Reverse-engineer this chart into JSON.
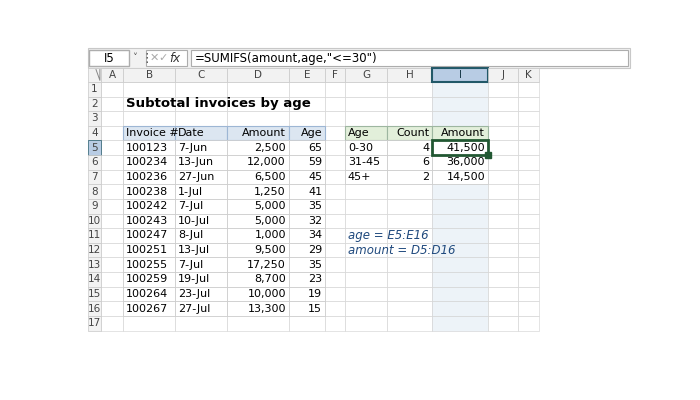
{
  "title": "Subtotal invoices by age",
  "formula_cell": "I5",
  "formula": "=SUMIFS(amount,age,\"<=30\")",
  "col_labels": [
    "A",
    "B",
    "C",
    "D",
    "E",
    "F",
    "G",
    "H",
    "I",
    "J",
    "K"
  ],
  "row_labels": [
    "1",
    "2",
    "3",
    "4",
    "5",
    "6",
    "7",
    "8",
    "9",
    "10",
    "11",
    "12",
    "13",
    "14",
    "15",
    "16",
    "17"
  ],
  "main_table_headers": [
    "Invoice #",
    "Date",
    "Amount",
    "Age"
  ],
  "main_table_data": [
    [
      "100123",
      "7-Jun",
      "2,500",
      "65"
    ],
    [
      "100234",
      "13-Jun",
      "12,000",
      "59"
    ],
    [
      "100236",
      "27-Jun",
      "6,500",
      "45"
    ],
    [
      "100238",
      "1-Jul",
      "1,250",
      "41"
    ],
    [
      "100242",
      "7-Jul",
      "5,000",
      "35"
    ],
    [
      "100243",
      "10-Jul",
      "5,000",
      "32"
    ],
    [
      "100247",
      "8-Jul",
      "1,000",
      "34"
    ],
    [
      "100251",
      "13-Jul",
      "9,500",
      "29"
    ],
    [
      "100255",
      "7-Jul",
      "17,250",
      "35"
    ],
    [
      "100259",
      "19-Jul",
      "8,700",
      "23"
    ],
    [
      "100264",
      "23-Jul",
      "10,000",
      "19"
    ],
    [
      "100267",
      "27-Jul",
      "13,300",
      "15"
    ]
  ],
  "sum_headers": [
    "Age",
    "Count",
    "Amount"
  ],
  "sum_data": [
    [
      "0-30",
      "4",
      "41,500"
    ],
    [
      "31-45",
      "6",
      "36,000"
    ],
    [
      "45+",
      "2",
      "14,500"
    ]
  ],
  "named_ranges": [
    "age = E5:E16",
    "amount = D5:D16"
  ],
  "bg_white": "#ffffff",
  "bg_gray": "#f2f2f2",
  "col_hdr_highlight": "#b8cce4",
  "col_hdr_selected": "#215868",
  "main_hdr_fill": "#dce6f1",
  "sum_hdr_fill": "#e2efda",
  "sel_border": "#215732",
  "row_hdr_sel": "#b8cce4",
  "grid_line": "#d0d0d0",
  "dark_border": "#8ea9c1",
  "note_color": "#1f497d"
}
